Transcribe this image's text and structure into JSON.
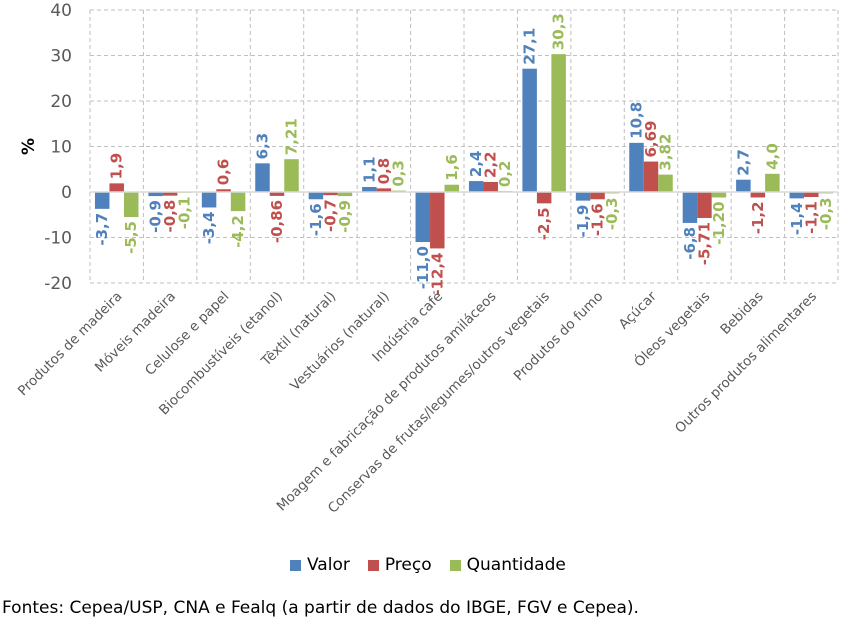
{
  "chart_data": {
    "type": "bar",
    "title": "",
    "xlabel": "",
    "ylabel": "%",
    "ylim": [
      -20,
      40
    ],
    "yticks": [
      40,
      30,
      20,
      10,
      0,
      -10,
      -20
    ],
    "grid": true,
    "legend_position": "bottom",
    "categories": [
      "Produtos de madeira",
      "Móveis madeira",
      "Celulose e papel",
      "Biocombustíveis (etanol)",
      "Têxtil (natural)",
      "Vestuários (natural)",
      "Indústria café",
      "Moagem e fabricação de produtos amiláceos",
      "Conservas de frutas/legumes/outros vegetais",
      "Produtos do fumo",
      "Açúcar",
      "Óleos vegetais",
      "Bebidas",
      "Outros produtos alimentares"
    ],
    "series": [
      {
        "name": "Valor",
        "color": "#4F81BD",
        "values": [
          -3.7,
          -0.9,
          -3.4,
          6.3,
          -1.6,
          1.1,
          -11.0,
          2.4,
          27.1,
          -1.9,
          10.8,
          -6.8,
          2.7,
          -1.4
        ],
        "labels": [
          "-3,7",
          "-0,9",
          "-3,4",
          "6,3",
          "-1,6",
          "1,1",
          "-11,0",
          "2,4",
          "27,1",
          "-1,9",
          "10,8",
          "-6,8",
          "2,7",
          "-1,4"
        ]
      },
      {
        "name": "Preço",
        "color": "#C0504D",
        "values": [
          1.9,
          -0.8,
          0.6,
          -0.86,
          -0.7,
          0.8,
          -12.4,
          2.2,
          -2.5,
          -1.6,
          6.69,
          -5.71,
          -1.2,
          -1.1
        ],
        "labels": [
          "1,9",
          "-0,8",
          "0,6",
          "-0,86",
          "-0,7",
          "0,8",
          "-12,4",
          "2,2",
          "-2,5",
          "-1,6",
          "6,69",
          "-5,71",
          "-1,2",
          "-1,1"
        ]
      },
      {
        "name": "Quantidade",
        "color": "#9BBB59",
        "values": [
          -5.5,
          -0.1,
          -4.2,
          7.21,
          -0.9,
          0.3,
          1.6,
          0.2,
          30.3,
          -0.3,
          3.82,
          -1.2,
          4.0,
          -0.3
        ],
        "labels": [
          "-5,5",
          "-0,1",
          "-4,2",
          "7,21",
          "-0,9",
          "0,3",
          "1,6",
          "0,2",
          "30,3",
          "-0,3",
          "3,82",
          "-1,20",
          "4,0",
          "-0,3"
        ]
      }
    ]
  },
  "legend": {
    "items": [
      {
        "label": "Valor",
        "color": "#4F81BD"
      },
      {
        "label": "Preço",
        "color": "#C0504D"
      },
      {
        "label": "Quantidade",
        "color": "#9BBB59"
      }
    ]
  },
  "source": "Fontes: Cepea/USP, CNA e Fealq (a partir de dados do IBGE, FGV e Cepea)."
}
